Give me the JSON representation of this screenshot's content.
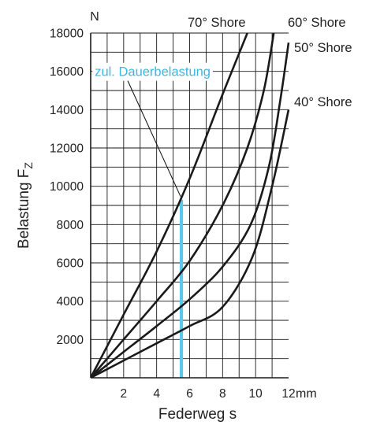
{
  "chart_data": {
    "type": "line",
    "title": "",
    "xlabel": "Federweg s",
    "ylabel": "Belastung F",
    "ylabel_subscript": "Z",
    "x_unit": "mm",
    "y_unit": "N",
    "xlim": [
      0,
      12
    ],
    "ylim": [
      0,
      18000
    ],
    "x_ticks": [
      2,
      4,
      6,
      8,
      10,
      12
    ],
    "y_ticks": [
      2000,
      4000,
      6000,
      8000,
      10000,
      12000,
      14000,
      16000,
      18000
    ],
    "grid": true,
    "colors": {
      "curve": "#1a1a1a",
      "grid": "#1a1a1a",
      "limit": "#5bc8ea",
      "anno_text": "#3cb6e3"
    },
    "series": [
      {
        "name": "70° Shore",
        "x": [
          0,
          2,
          4,
          6,
          8,
          9.5
        ],
        "y": [
          0,
          3300,
          6600,
          10400,
          14800,
          18000
        ]
      },
      {
        "name": "60° Shore",
        "x": [
          0,
          2,
          4,
          6,
          8,
          9.5,
          10.5,
          11.1
        ],
        "y": [
          0,
          2000,
          4000,
          6100,
          9000,
          12000,
          15000,
          18000
        ]
      },
      {
        "name": "50° Shore",
        "x": [
          0,
          2,
          4,
          6,
          8,
          9.7,
          10.8,
          11.5,
          12
        ],
        "y": [
          0,
          1350,
          2700,
          4100,
          5800,
          8000,
          11000,
          14500,
          17500
        ]
      },
      {
        "name": "40° Shore",
        "x": [
          0,
          2,
          4,
          6,
          8,
          9.8,
          11,
          12
        ],
        "y": [
          0,
          900,
          1800,
          2700,
          3700,
          6300,
          10000,
          14000
        ]
      }
    ],
    "annotations": [
      {
        "text": "zul. Dauerbelastung",
        "x": 5.5,
        "y_max": 9300,
        "pointer_from": [
          2.2,
          15600
        ]
      }
    ]
  }
}
